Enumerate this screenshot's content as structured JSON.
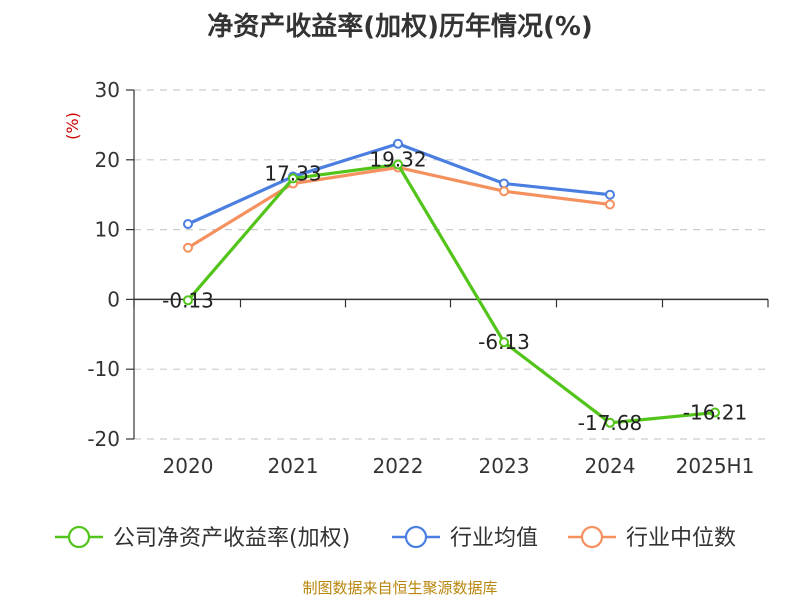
{
  "chart_data": {
    "type": "line",
    "title": "净资产收益率(加权)历年情况(%)",
    "ylabel": "(%)",
    "xlabel": "",
    "categories": [
      "2020",
      "2021",
      "2022",
      "2023",
      "2024",
      "2025H1"
    ],
    "ylim": [
      -20,
      30
    ],
    "yticks": [
      30,
      20,
      10,
      0,
      -10,
      -20
    ],
    "ytick_labels": [
      "30",
      "20",
      "10",
      "0",
      "-10",
      "-20"
    ],
    "grid": true,
    "legend_position": "bottom",
    "series": [
      {
        "name": "公司净资产收益率(加权)",
        "color": "#52c41a",
        "values": [
          -0.13,
          17.33,
          19.32,
          -6.13,
          -17.68,
          -16.21
        ],
        "labels": [
          "-0.13",
          "17.33",
          "19.32",
          "-6.13",
          "-17.68",
          "-16.21"
        ]
      },
      {
        "name": "行业均值",
        "color": "#4a7ee0",
        "values": [
          10.8,
          17.6,
          22.3,
          16.6,
          15.0,
          null
        ],
        "labels": null
      },
      {
        "name": "行业中位数",
        "color": "#f5915e",
        "values": [
          7.4,
          16.6,
          18.9,
          15.5,
          13.6,
          null
        ],
        "labels": null
      }
    ]
  },
  "source": "制图数据来自恒生聚源数据库"
}
